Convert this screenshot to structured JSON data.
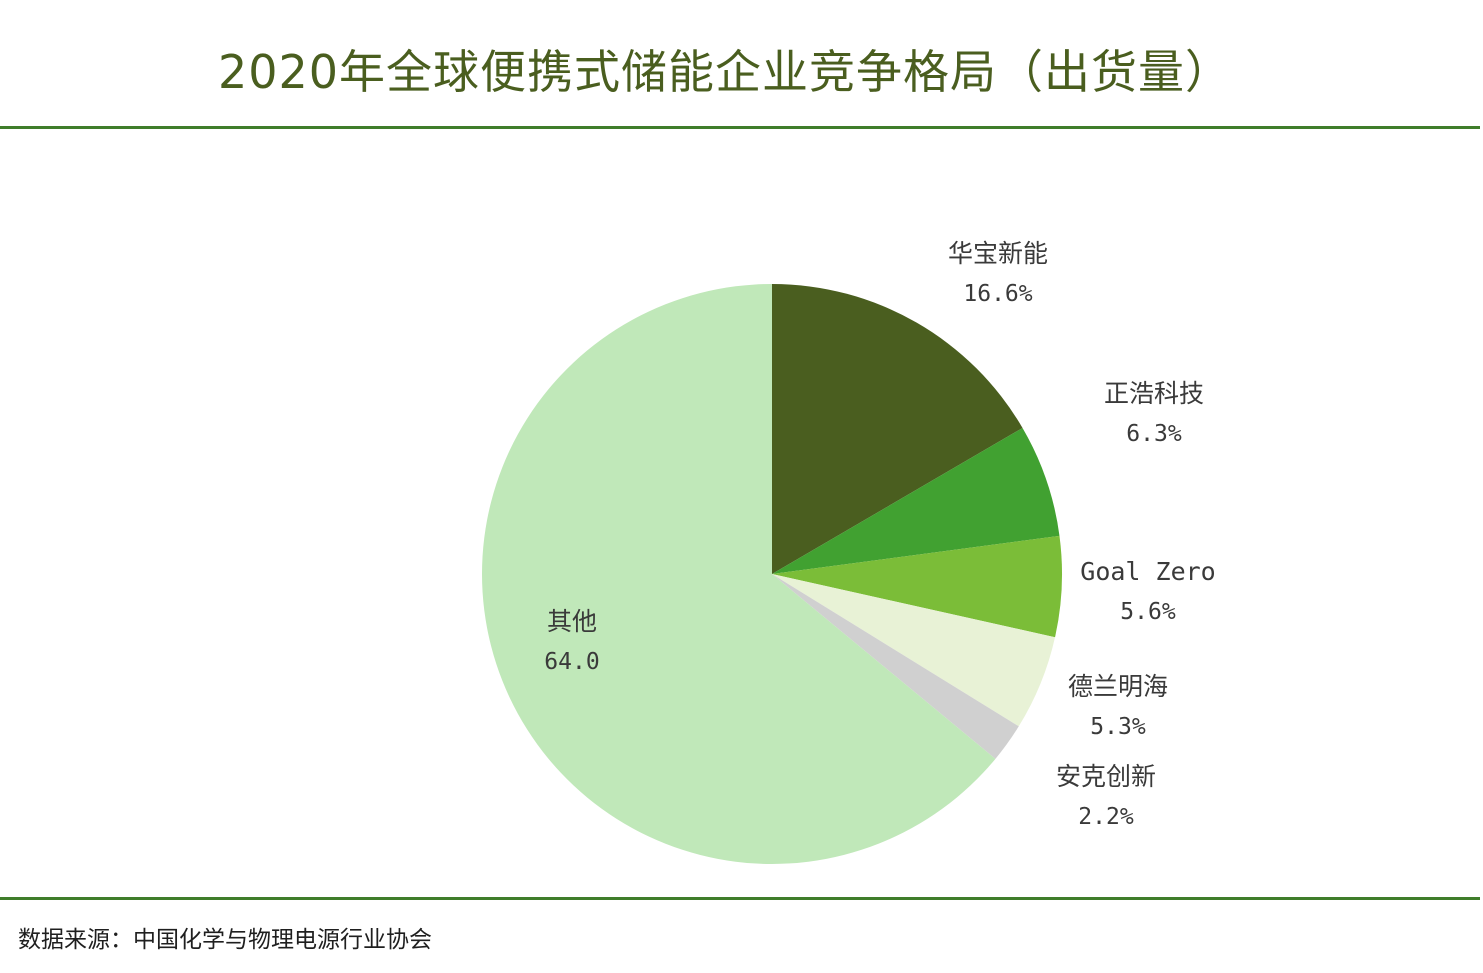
{
  "header": {
    "title": "2020年全球便携式储能企业竞争格局（出货量）"
  },
  "footer": {
    "source": "数据来源：中国化学与物理电源行业协会"
  },
  "chart_data": {
    "type": "pie",
    "title": "2020年全球便携式储能企业竞争格局（出货量）",
    "start_angle_deg": 0,
    "direction": "clockwise",
    "slices": [
      {
        "label": "华宝新能",
        "value": 16.6,
        "value_text": "16.6%",
        "color": "#4a5e1f"
      },
      {
        "label": "正浩科技",
        "value": 6.3,
        "value_text": "6.3%",
        "color": "#41a131"
      },
      {
        "label": "Goal Zero",
        "value": 5.6,
        "value_text": "5.6%",
        "color": "#7bbd38"
      },
      {
        "label": "德兰明海",
        "value": 5.3,
        "value_text": "5.3%",
        "color": "#e8f2d6"
      },
      {
        "label": "安克创新",
        "value": 2.2,
        "value_text": "2.2%",
        "color": "#d0d0d0"
      },
      {
        "label": "其他",
        "value": 64.0,
        "value_text": "64.0",
        "color": "#c0e8b9"
      }
    ],
    "legend": "none",
    "data_labels": "outside"
  }
}
